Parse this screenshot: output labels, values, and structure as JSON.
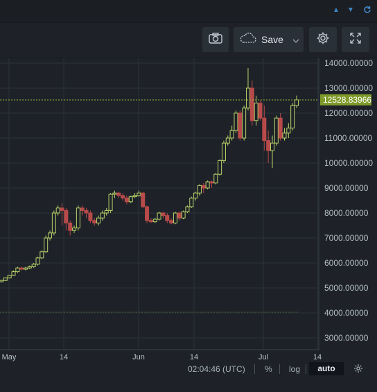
{
  "topbar": {
    "icons": [
      "triangle-up-icon",
      "triangle-down-icon",
      "refresh-icon"
    ]
  },
  "toolbar": {
    "snapshot_icon": "camera-icon",
    "save_label": "Save",
    "save_icon": "cloud-icon",
    "dropdown_icon": "chevron-down-icon",
    "settings_icon": "gear-icon",
    "fullscreen_icon": "expand-icon"
  },
  "colors": {
    "background": "#1e2228",
    "grid": "#2a3038",
    "up": "#b9d36a",
    "down": "#b84a4a",
    "price_line": "#9fbf3a",
    "price_label_bg": "#7e9a2a"
  },
  "footer": {
    "time": "02:04:46 (UTC)",
    "percent": "%",
    "log": "log",
    "auto": "auto",
    "settings_icon": "gear-icon"
  },
  "chart_data": {
    "type": "candlestick",
    "y_ticks": [
      "14000.00000",
      "13000.00000",
      "12000.00000",
      "11000.00000",
      "10000.00000",
      "9000.00000",
      "8000.00000",
      "7000.00000",
      "6000.00000",
      "5000.00000",
      "4000.00000",
      "3000.00000"
    ],
    "x_ticks": [
      "May",
      "14",
      "Jun",
      "14",
      "Jul",
      "14"
    ],
    "last_price_label": "12528.83966",
    "last_price": 12528.84,
    "ylim": [
      2600,
      14150
    ],
    "grid": true,
    "candles": [
      [
        5250,
        5300,
        5220,
        5320
      ],
      [
        5300,
        5400,
        5280,
        5420
      ],
      [
        5400,
        5500,
        5380,
        5520
      ],
      [
        5500,
        5650,
        5480,
        5700
      ],
      [
        5650,
        5800,
        5600,
        5850
      ],
      [
        5800,
        5750,
        5700,
        5850
      ],
      [
        5750,
        5800,
        5700,
        5850
      ],
      [
        5800,
        5850,
        5750,
        5900
      ],
      [
        5850,
        5950,
        5800,
        6000
      ],
      [
        5950,
        6200,
        5900,
        6250
      ],
      [
        6200,
        6450,
        6150,
        6500
      ],
      [
        6450,
        7000,
        6400,
        7100
      ],
      [
        7000,
        7200,
        6900,
        7300
      ],
      [
        7200,
        8000,
        7100,
        8100
      ],
      [
        8000,
        8200,
        7900,
        8300
      ],
      [
        8200,
        8100,
        7500,
        8400
      ],
      [
        8100,
        7600,
        7300,
        8200
      ],
      [
        7600,
        7300,
        7100,
        7700
      ],
      [
        7300,
        7400,
        7200,
        7500
      ],
      [
        7400,
        8200,
        7300,
        8300
      ],
      [
        8200,
        8100,
        7900,
        8300
      ],
      [
        8100,
        8000,
        7800,
        8200
      ],
      [
        8000,
        7700,
        7600,
        8100
      ],
      [
        7700,
        7600,
        7500,
        7800
      ],
      [
        7600,
        7800,
        7500,
        7900
      ],
      [
        7800,
        8000,
        7700,
        8100
      ],
      [
        8000,
        8100,
        7900,
        8200
      ],
      [
        8100,
        8750,
        8000,
        8800
      ],
      [
        8750,
        8800,
        8600,
        8900
      ],
      [
        8800,
        8700,
        8600,
        8850
      ],
      [
        8700,
        8600,
        8500,
        8800
      ],
      [
        8600,
        8450,
        8350,
        8700
      ],
      [
        8450,
        8650,
        8400,
        8700
      ],
      [
        8650,
        8700,
        8600,
        8800
      ],
      [
        8700,
        8800,
        8650,
        8900
      ],
      [
        8800,
        8250,
        8200,
        8850
      ],
      [
        8250,
        7700,
        7600,
        8300
      ],
      [
        7700,
        7650,
        7600,
        7800
      ],
      [
        7650,
        7750,
        7600,
        7800
      ],
      [
        7750,
        8000,
        7700,
        8050
      ],
      [
        8000,
        7900,
        7800,
        8050
      ],
      [
        7900,
        7700,
        7600,
        8000
      ],
      [
        7700,
        7600,
        7550,
        7800
      ],
      [
        7600,
        8000,
        7550,
        8050
      ],
      [
        8000,
        7800,
        7700,
        8050
      ],
      [
        7800,
        8050,
        7750,
        8100
      ],
      [
        8050,
        8250,
        8000,
        8300
      ],
      [
        8250,
        8600,
        8200,
        8650
      ],
      [
        8600,
        8800,
        8500,
        8850
      ],
      [
        8800,
        9100,
        8700,
        9150
      ],
      [
        9100,
        9000,
        8800,
        9200
      ],
      [
        9000,
        9250,
        8950,
        9300
      ],
      [
        9250,
        9200,
        9000,
        9300
      ],
      [
        9200,
        9550,
        9150,
        9600
      ],
      [
        9550,
        10100,
        9500,
        10150
      ],
      [
        10100,
        10800,
        10000,
        10900
      ],
      [
        10800,
        11000,
        10700,
        11100
      ],
      [
        11000,
        11300,
        10900,
        11500
      ],
      [
        11300,
        12000,
        11200,
        12100
      ],
      [
        12000,
        11000,
        10900,
        12100
      ],
      [
        11000,
        12200,
        10900,
        12300
      ],
      [
        12200,
        13000,
        12100,
        13800
      ],
      [
        13000,
        11700,
        11500,
        13300
      ],
      [
        11700,
        12400,
        11500,
        12700
      ],
      [
        12400,
        11800,
        11700,
        12500
      ],
      [
        11800,
        10900,
        10500,
        12300
      ],
      [
        10900,
        10500,
        10000,
        11300
      ],
      [
        10500,
        10800,
        9800,
        11100
      ],
      [
        10800,
        11800,
        10700,
        11900
      ],
      [
        11800,
        11000,
        10900,
        12000
      ],
      [
        11000,
        11200,
        10900,
        11400
      ],
      [
        11200,
        11400,
        11000,
        11600
      ],
      [
        11400,
        12300,
        11300,
        12400
      ],
      [
        12300,
        12529,
        12200,
        12700
      ]
    ]
  }
}
